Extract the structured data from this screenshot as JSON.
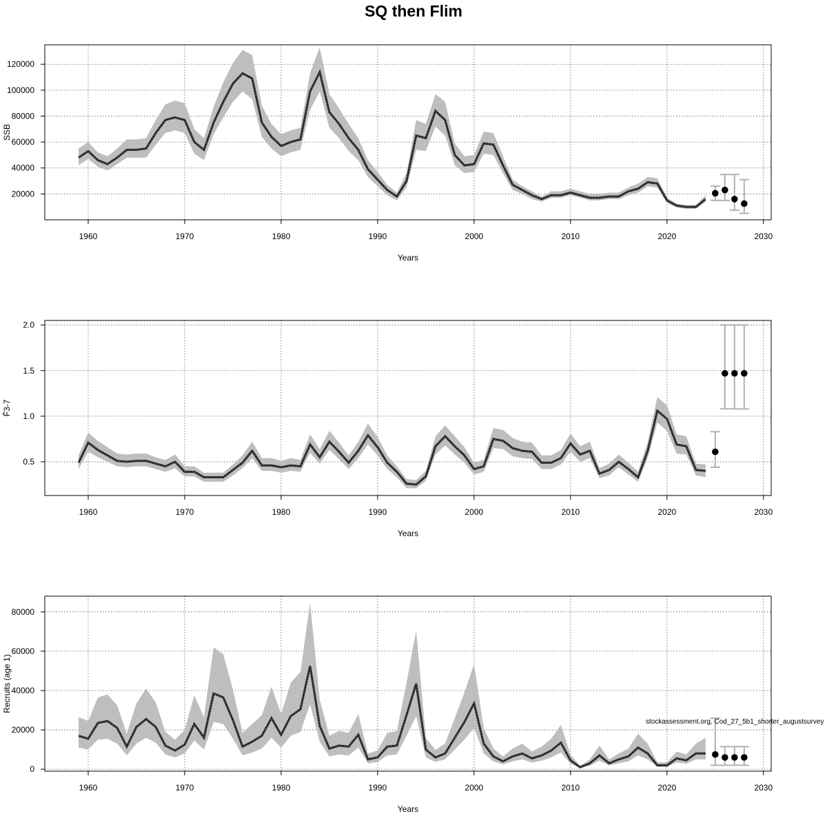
{
  "title": "SQ then Flim",
  "watermark": "stockassessment.org, Cod_27_5b1_shorter_augustsurvey",
  "colors": {
    "band": "#bebebe",
    "line": "#222222",
    "grid": "#555555",
    "frame": "#000000",
    "forecast_bar": "#b0b0b0",
    "forecast_point": "#000000"
  },
  "chart_data": [
    {
      "type": "line",
      "ylabel": "SSB",
      "xlabel": "Years",
      "xlim": [
        1959,
        2028
      ],
      "ylim": [
        0,
        135000
      ],
      "x_ticks": [
        1960,
        1970,
        1980,
        1990,
        2000,
        2010,
        2020,
        2030
      ],
      "y_ticks": [
        20000,
        40000,
        60000,
        80000,
        100000,
        120000
      ],
      "y_tick_labels": [
        "20000",
        "40000",
        "60000",
        "80000",
        "100000",
        "120000"
      ],
      "grid": true,
      "years": [
        1959,
        1960,
        1961,
        1962,
        1963,
        1964,
        1965,
        1966,
        1967,
        1968,
        1969,
        1970,
        1971,
        1972,
        1973,
        1974,
        1975,
        1976,
        1977,
        1978,
        1979,
        1980,
        1981,
        1982,
        1983,
        1984,
        1985,
        1986,
        1987,
        1988,
        1989,
        1990,
        1991,
        1992,
        1993,
        1994,
        1995,
        1996,
        1997,
        1998,
        1999,
        2000,
        2001,
        2002,
        2003,
        2004,
        2005,
        2006,
        2007,
        2008,
        2009,
        2010,
        2011,
        2012,
        2013,
        2014,
        2015,
        2016,
        2017,
        2018,
        2019,
        2020,
        2021,
        2022,
        2023,
        2024
      ],
      "estimate": [
        48000,
        53000,
        46000,
        43000,
        48000,
        54000,
        54000,
        55000,
        67000,
        77000,
        79000,
        77000,
        60000,
        54000,
        75000,
        91000,
        105000,
        113000,
        109000,
        75000,
        64000,
        57000,
        60000,
        62000,
        99000,
        114000,
        83000,
        74000,
        63000,
        54000,
        39000,
        31000,
        23000,
        18000,
        30000,
        65000,
        63000,
        84000,
        77000,
        50000,
        42000,
        43000,
        59000,
        58000,
        42000,
        27000,
        23000,
        19000,
        16000,
        19000,
        19000,
        21000,
        19000,
        17000,
        17000,
        18000,
        18000,
        22000,
        24000,
        29000,
        28000,
        15000,
        11000,
        10000,
        10000,
        16000
      ],
      "lower": [
        42000,
        47000,
        41000,
        38000,
        43000,
        48000,
        48000,
        48000,
        58000,
        67000,
        69000,
        67000,
        51000,
        46000,
        66000,
        79000,
        91000,
        99000,
        93000,
        64000,
        55000,
        49000,
        52000,
        54000,
        85000,
        99000,
        71000,
        63000,
        53000,
        46000,
        33000,
        26000,
        19000,
        15000,
        25000,
        54000,
        53000,
        72000,
        65000,
        42000,
        36000,
        37000,
        51000,
        50000,
        36000,
        23000,
        20000,
        16000,
        14000,
        17000,
        17000,
        19000,
        17000,
        15000,
        15000,
        16000,
        16000,
        19000,
        21000,
        26000,
        25000,
        13000,
        9500,
        8500,
        8500,
        14000
      ],
      "upper": [
        55000,
        60000,
        52000,
        49000,
        55000,
        62000,
        62000,
        63000,
        77000,
        89000,
        92000,
        90000,
        70000,
        63000,
        87000,
        106000,
        121000,
        131000,
        127000,
        88000,
        74000,
        66000,
        69000,
        71000,
        113000,
        133000,
        97000,
        86000,
        74000,
        63000,
        46000,
        37000,
        27000,
        21000,
        36000,
        77000,
        74000,
        97000,
        91000,
        59000,
        49000,
        50000,
        68000,
        67000,
        49000,
        31000,
        26000,
        22000,
        18000,
        22000,
        22000,
        24000,
        22000,
        20000,
        20000,
        21000,
        21000,
        25000,
        28000,
        33000,
        32000,
        17000,
        12500,
        11500,
        11500,
        19000
      ],
      "forecast": [
        {
          "year": 2025,
          "value": 20500,
          "low": 15000,
          "high": 26000
        },
        {
          "year": 2026,
          "value": 23000,
          "low": 15000,
          "high": 35000
        },
        {
          "year": 2027,
          "value": 16000,
          "low": 7500,
          "high": 35000
        },
        {
          "year": 2028,
          "value": 12500,
          "low": 5000,
          "high": 31000
        }
      ]
    },
    {
      "type": "line",
      "ylabel": "F̄3-7",
      "xlabel": "Years",
      "xlim": [
        1959,
        2028
      ],
      "ylim": [
        0.13,
        2.05
      ],
      "x_ticks": [
        1960,
        1970,
        1980,
        1990,
        2000,
        2010,
        2020,
        2030
      ],
      "y_ticks": [
        0.5,
        1.0,
        1.5,
        2.0
      ],
      "y_tick_labels": [
        "0.5",
        "1.0",
        "1.5",
        "2.0"
      ],
      "grid": true,
      "years": [
        1959,
        1960,
        1961,
        1962,
        1963,
        1964,
        1965,
        1966,
        1967,
        1968,
        1969,
        1970,
        1971,
        1972,
        1973,
        1974,
        1975,
        1976,
        1977,
        1978,
        1979,
        1980,
        1981,
        1982,
        1983,
        1984,
        1985,
        1986,
        1987,
        1988,
        1989,
        1990,
        1991,
        1992,
        1993,
        1994,
        1995,
        1996,
        1997,
        1998,
        1999,
        2000,
        2001,
        2002,
        2003,
        2004,
        2005,
        2006,
        2007,
        2008,
        2009,
        2010,
        2011,
        2012,
        2013,
        2014,
        2015,
        2016,
        2017,
        2018,
        2019,
        2020,
        2021,
        2022,
        2023,
        2024
      ],
      "estimate": [
        0.49,
        0.71,
        0.63,
        0.57,
        0.51,
        0.5,
        0.51,
        0.51,
        0.48,
        0.45,
        0.5,
        0.39,
        0.39,
        0.33,
        0.33,
        0.33,
        0.41,
        0.49,
        0.62,
        0.46,
        0.46,
        0.44,
        0.46,
        0.45,
        0.69,
        0.55,
        0.72,
        0.61,
        0.49,
        0.62,
        0.79,
        0.66,
        0.49,
        0.39,
        0.26,
        0.25,
        0.34,
        0.67,
        0.78,
        0.67,
        0.57,
        0.42,
        0.45,
        0.75,
        0.73,
        0.65,
        0.62,
        0.61,
        0.49,
        0.49,
        0.54,
        0.7,
        0.58,
        0.62,
        0.37,
        0.41,
        0.5,
        0.42,
        0.33,
        0.62,
        1.06,
        0.97,
        0.69,
        0.67,
        0.41,
        0.4
      ],
      "lower": [
        0.42,
        0.61,
        0.55,
        0.5,
        0.45,
        0.44,
        0.45,
        0.45,
        0.42,
        0.39,
        0.43,
        0.34,
        0.34,
        0.28,
        0.28,
        0.28,
        0.35,
        0.43,
        0.54,
        0.4,
        0.4,
        0.38,
        0.4,
        0.39,
        0.6,
        0.48,
        0.63,
        0.53,
        0.42,
        0.54,
        0.69,
        0.57,
        0.42,
        0.33,
        0.21,
        0.21,
        0.29,
        0.58,
        0.68,
        0.58,
        0.49,
        0.36,
        0.39,
        0.65,
        0.64,
        0.56,
        0.54,
        0.53,
        0.42,
        0.42,
        0.47,
        0.61,
        0.5,
        0.54,
        0.32,
        0.35,
        0.44,
        0.36,
        0.28,
        0.54,
        0.93,
        0.84,
        0.59,
        0.58,
        0.35,
        0.33
      ],
      "upper": [
        0.57,
        0.82,
        0.73,
        0.66,
        0.59,
        0.58,
        0.59,
        0.59,
        0.55,
        0.52,
        0.58,
        0.45,
        0.45,
        0.38,
        0.38,
        0.38,
        0.47,
        0.57,
        0.72,
        0.54,
        0.54,
        0.51,
        0.54,
        0.52,
        0.8,
        0.64,
        0.84,
        0.71,
        0.57,
        0.72,
        0.92,
        0.77,
        0.57,
        0.45,
        0.31,
        0.3,
        0.4,
        0.78,
        0.9,
        0.78,
        0.66,
        0.49,
        0.52,
        0.87,
        0.85,
        0.76,
        0.72,
        0.71,
        0.57,
        0.57,
        0.63,
        0.81,
        0.67,
        0.72,
        0.43,
        0.48,
        0.58,
        0.49,
        0.39,
        0.72,
        1.21,
        1.12,
        0.8,
        0.78,
        0.48,
        0.47
      ],
      "forecast": [
        {
          "year": 2025,
          "value": 0.61,
          "low": 0.44,
          "high": 0.83
        },
        {
          "year": 2026,
          "value": 1.47,
          "low": 1.08,
          "high": 2.0
        },
        {
          "year": 2027,
          "value": 1.47,
          "low": 1.08,
          "high": 2.0
        },
        {
          "year": 2028,
          "value": 1.47,
          "low": 1.08,
          "high": 2.0
        }
      ]
    },
    {
      "type": "line",
      "ylabel": "Recruits (age 1)",
      "xlabel": "Years",
      "xlim": [
        1959,
        2028
      ],
      "ylim": [
        -1000,
        88000
      ],
      "x_ticks": [
        1960,
        1970,
        1980,
        1990,
        2000,
        2010,
        2020,
        2030
      ],
      "y_ticks": [
        0,
        20000,
        40000,
        60000,
        80000
      ],
      "y_tick_labels": [
        "0",
        "20000",
        "40000",
        "60000",
        "80000"
      ],
      "grid": true,
      "years": [
        1959,
        1960,
        1961,
        1962,
        1963,
        1964,
        1965,
        1966,
        1967,
        1968,
        1969,
        1970,
        1971,
        1972,
        1973,
        1974,
        1975,
        1976,
        1977,
        1978,
        1979,
        1980,
        1981,
        1982,
        1983,
        1984,
        1985,
        1986,
        1987,
        1988,
        1989,
        1990,
        1991,
        1992,
        1993,
        1994,
        1995,
        1996,
        1997,
        1998,
        1999,
        2000,
        2001,
        2002,
        2003,
        2004,
        2005,
        2006,
        2007,
        2008,
        2009,
        2010,
        2011,
        2012,
        2013,
        2014,
        2015,
        2016,
        2017,
        2018,
        2019,
        2020,
        2021,
        2022,
        2023,
        2024
      ],
      "estimate": [
        17000,
        15500,
        23500,
        24500,
        21000,
        11500,
        21500,
        25500,
        21500,
        12000,
        9500,
        12500,
        23000,
        16000,
        38500,
        36500,
        25000,
        11500,
        14000,
        17000,
        26000,
        17500,
        27000,
        30500,
        52500,
        22000,
        10500,
        12000,
        11500,
        17500,
        5000,
        6000,
        11500,
        12000,
        27500,
        43500,
        10000,
        6000,
        8000,
        16000,
        24000,
        33500,
        13000,
        6500,
        4000,
        6500,
        8000,
        5500,
        7000,
        9500,
        13500,
        4500,
        1000,
        3000,
        7000,
        3000,
        5000,
        6500,
        11000,
        8000,
        2000,
        2000,
        5500,
        4500,
        8000,
        8000
      ],
      "lower": [
        11000,
        10000,
        15000,
        15500,
        13000,
        7000,
        13000,
        16000,
        13500,
        7500,
        6000,
        8000,
        14500,
        10000,
        24000,
        23000,
        15500,
        7000,
        8500,
        10500,
        16000,
        11000,
        17000,
        19000,
        33000,
        14000,
        6500,
        7500,
        7000,
        11000,
        3000,
        3700,
        7000,
        7500,
        17000,
        27000,
        6000,
        3700,
        5000,
        10000,
        15000,
        21000,
        8000,
        4000,
        2400,
        4000,
        5000,
        3400,
        4300,
        6000,
        8500,
        2800,
        600,
        1800,
        4300,
        1900,
        3000,
        4000,
        7000,
        5000,
        1200,
        1200,
        3400,
        2800,
        5000,
        5000
      ],
      "upper": [
        26500,
        24500,
        36500,
        38000,
        32500,
        18000,
        33500,
        41000,
        34000,
        19000,
        15000,
        20000,
        37500,
        26500,
        62000,
        58500,
        40500,
        18500,
        23000,
        27500,
        42000,
        28000,
        44000,
        49500,
        84500,
        35500,
        17000,
        19500,
        18500,
        28000,
        8000,
        9500,
        18500,
        19500,
        44000,
        70500,
        16000,
        9800,
        13000,
        26000,
        39000,
        53500,
        21000,
        10500,
        6500,
        10500,
        13000,
        9000,
        11500,
        15500,
        22500,
        7400,
        1700,
        5000,
        12000,
        5000,
        8000,
        10500,
        18000,
        13000,
        3500,
        3500,
        9000,
        7500,
        13000,
        16000
      ],
      "forecast": [
        {
          "year": 2025,
          "value": 7500,
          "low": 2000,
          "high": 26000
        },
        {
          "year": 2026,
          "value": 6000,
          "low": 2000,
          "high": 11500
        },
        {
          "year": 2027,
          "value": 6000,
          "low": 2000,
          "high": 11500
        },
        {
          "year": 2028,
          "value": 6000,
          "low": 2000,
          "high": 11500
        }
      ]
    }
  ]
}
